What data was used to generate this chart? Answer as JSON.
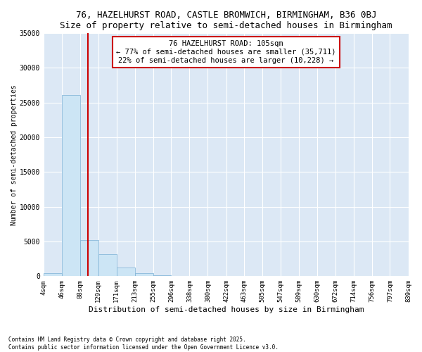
{
  "title": "76, HAZELHURST ROAD, CASTLE BROMWICH, BIRMINGHAM, B36 0BJ",
  "subtitle": "Size of property relative to semi-detached houses in Birmingham",
  "xlabel": "Distribution of semi-detached houses by size in Birmingham",
  "ylabel": "Number of semi-detached properties",
  "annotation_title": "76 HAZELHURST ROAD: 105sqm",
  "annotation_line1": "← 77% of semi-detached houses are smaller (35,711)",
  "annotation_line2": "22% of semi-detached houses are larger (10,228) →",
  "property_size": 105,
  "bar_left_edges": [
    4,
    46,
    88,
    129,
    171,
    213,
    255,
    296,
    338,
    380,
    422,
    463,
    505,
    547,
    589,
    630,
    672,
    714,
    756,
    797
  ],
  "bar_heights": [
    400,
    26100,
    5200,
    3200,
    1200,
    400,
    100,
    50,
    20,
    10,
    8,
    5,
    3,
    2,
    1,
    1,
    0,
    0,
    0,
    0
  ],
  "bar_widths": [
    42,
    42,
    41,
    42,
    42,
    42,
    41,
    42,
    42,
    42,
    41,
    42,
    42,
    42,
    41,
    42,
    42,
    42,
    41,
    42
  ],
  "bar_color": "#cce5f5",
  "bar_edge_color": "#7ab0d4",
  "red_line_color": "#cc0000",
  "annotation_box_color": "#cc0000",
  "tick_labels": [
    "4sqm",
    "46sqm",
    "88sqm",
    "129sqm",
    "171sqm",
    "213sqm",
    "255sqm",
    "296sqm",
    "338sqm",
    "380sqm",
    "422sqm",
    "463sqm",
    "505sqm",
    "547sqm",
    "589sqm",
    "630sqm",
    "672sqm",
    "714sqm",
    "756sqm",
    "797sqm",
    "839sqm"
  ],
  "tick_positions": [
    4,
    46,
    88,
    129,
    171,
    213,
    255,
    296,
    338,
    380,
    422,
    463,
    505,
    547,
    589,
    630,
    672,
    714,
    756,
    797,
    839
  ],
  "ylim": [
    0,
    35000
  ],
  "yticks": [
    0,
    5000,
    10000,
    15000,
    20000,
    25000,
    30000,
    35000
  ],
  "footer_line1": "Contains HM Land Registry data © Crown copyright and database right 2025.",
  "footer_line2": "Contains public sector information licensed under the Open Government Licence v3.0.",
  "plot_bg_color": "#dce8f5",
  "fig_background_color": "#ffffff",
  "grid_color": "#b8cfe0"
}
